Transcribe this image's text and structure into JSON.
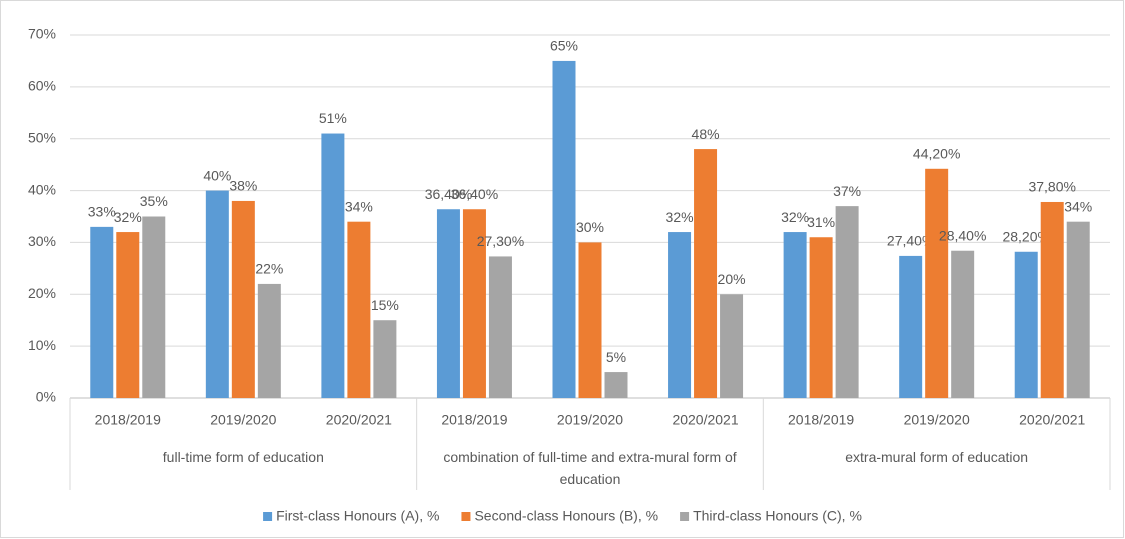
{
  "chart_data": {
    "type": "bar",
    "categories": [
      "2018/2019",
      "2019/2020",
      "2020/2021",
      "2018/2019",
      "2019/2020",
      "2020/2021",
      "2018/2019",
      "2019/2020",
      "2020/2021"
    ],
    "groups": [
      "full-time form of education",
      "combination of full-time and extra-mural form of education",
      "extra-mural form of education"
    ],
    "series": [
      {
        "name": "First-class Honours (A), %",
        "color": "#5b9bd5",
        "values": [
          33,
          40,
          51,
          36.4,
          65,
          32,
          32,
          27.4,
          28.2
        ],
        "value_labels": [
          "33%",
          "40%",
          "51%",
          "36,40%",
          "65%",
          "32%",
          "32%",
          "27,40%",
          "28,20%"
        ]
      },
      {
        "name": "Second-class Honours (B), %",
        "color": "#ed7d31",
        "values": [
          32,
          38,
          34,
          36.4,
          30,
          48,
          31,
          44.2,
          37.8
        ],
        "value_labels": [
          "32%",
          "38%",
          "34%",
          "36,40%",
          "30%",
          "48%",
          "31%",
          "44,20%",
          "37,80%"
        ]
      },
      {
        "name": "Third-class Honours (C), %",
        "color": "#a5a5a5",
        "values": [
          35,
          22,
          15,
          27.3,
          5,
          20,
          37,
          28.4,
          34
        ],
        "value_labels": [
          "35%",
          "22%",
          "15%",
          "27,30%",
          "5%",
          "20%",
          "37%",
          "28,40%",
          "34%"
        ]
      }
    ],
    "ylim": [
      0,
      70
    ],
    "yticks": [
      {
        "value": 0,
        "label": "0%"
      },
      {
        "value": 10,
        "label": "10%"
      },
      {
        "value": 20,
        "label": "20%"
      },
      {
        "value": 30,
        "label": "30%"
      },
      {
        "value": 40,
        "label": "40%"
      },
      {
        "value": 50,
        "label": "50%"
      },
      {
        "value": 60,
        "label": "60%"
      },
      {
        "value": 70,
        "label": "70%"
      }
    ],
    "grid": true,
    "legend": "bottom"
  }
}
